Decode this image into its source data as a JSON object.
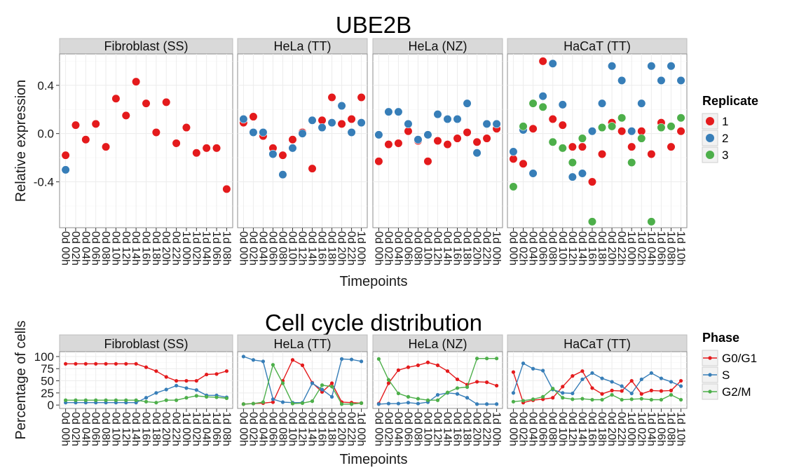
{
  "chart_data": [
    {
      "type": "scatter",
      "title": "UBE2B",
      "xlabel": "Timepoints",
      "ylabel": "Relative expression",
      "ylim": [
        -0.78,
        0.66
      ],
      "yticks": [
        -0.4,
        0.0,
        0.4
      ],
      "ytick_labels": [
        "-0.4",
        "0.0",
        "0.4"
      ],
      "legend": {
        "title": "Replicate",
        "position": "right",
        "entries": [
          "1",
          "2",
          "3"
        ]
      },
      "colors": {
        "1": "#e41a1c",
        "2": "#377eb8",
        "3": "#4daf4a"
      },
      "panels": [
        {
          "strip": "Fibroblast (SS)",
          "categories": [
            "0d 00h",
            "0d 02h",
            "0d 04h",
            "0d 06h",
            "0d 08h",
            "0d 10h",
            "0d 12h",
            "0d 14h",
            "0d 16h",
            "0d 18h",
            "0d 20h",
            "0d 22h",
            "1d 00h",
            "1d 02h",
            "1d 04h",
            "1d 06h",
            "1d 08h"
          ],
          "series": [
            {
              "name": "1",
              "values": [
                -0.18,
                0.07,
                -0.05,
                0.08,
                -0.11,
                0.29,
                0.15,
                0.43,
                0.25,
                0.01,
                0.26,
                -0.08,
                0.05,
                -0.16,
                -0.12,
                -0.12,
                -0.46
              ]
            },
            {
              "name": "2",
              "values": [
                -0.3,
                null,
                null,
                null,
                null,
                null,
                null,
                null,
                null,
                null,
                null,
                null,
                null,
                null,
                null,
                null,
                null
              ]
            }
          ]
        },
        {
          "strip": "HeLa (TT)",
          "categories": [
            "0d 00h",
            "0d 02h",
            "0d 04h",
            "0d 06h",
            "0d 08h",
            "0d 10h",
            "0d 12h",
            "0d 14h",
            "0d 16h",
            "0d 18h",
            "0d 20h",
            "0d 22h",
            "1d 00h"
          ],
          "series": [
            {
              "name": "1",
              "values": [
                0.09,
                0.14,
                -0.02,
                -0.12,
                -0.18,
                -0.05,
                0.01,
                -0.29,
                0.11,
                0.3,
                0.08,
                0.12,
                0.3
              ]
            },
            {
              "name": "2",
              "values": [
                0.12,
                0.01,
                0.01,
                -0.17,
                -0.34,
                -0.12,
                0.0,
                0.11,
                0.05,
                0.09,
                0.23,
                0.01,
                0.09
              ]
            }
          ]
        },
        {
          "strip": "HeLa (NZ)",
          "categories": [
            "0d 00h",
            "0d 02h",
            "0d 04h",
            "0d 06h",
            "0d 08h",
            "0d 10h",
            "0d 12h",
            "0d 14h",
            "0d 16h",
            "0d 18h",
            "0d 20h",
            "0d 22h",
            "1d 00h"
          ],
          "series": [
            {
              "name": "1",
              "values": [
                -0.23,
                -0.09,
                -0.08,
                0.02,
                -0.06,
                -0.23,
                -0.06,
                -0.09,
                -0.04,
                0.01,
                -0.07,
                -0.04,
                0.04
              ]
            },
            {
              "name": "2",
              "values": [
                -0.01,
                0.18,
                0.18,
                0.08,
                -0.05,
                -0.01,
                0.16,
                0.12,
                0.12,
                0.25,
                -0.16,
                0.08,
                0.08
              ]
            }
          ]
        },
        {
          "strip": "HaCaT (TT)",
          "categories": [
            "0d 00h",
            "0d 02h",
            "0d 04h",
            "0d 06h",
            "0d 08h",
            "0d 10h",
            "0d 12h",
            "0d 14h",
            "0d 16h",
            "0d 18h",
            "0d 20h",
            "0d 22h",
            "1d 00h",
            "1d 02h",
            "1d 04h",
            "1d 06h",
            "1d 08h",
            "1d 10h"
          ],
          "series": [
            {
              "name": "1",
              "values": [
                -0.21,
                -0.25,
                0.04,
                0.6,
                0.12,
                0.07,
                -0.11,
                -0.11,
                -0.4,
                -0.17,
                0.09,
                0.02,
                -0.11,
                0.02,
                -0.17,
                0.09,
                -0.11,
                0.02
              ]
            },
            {
              "name": "2",
              "values": [
                -0.15,
                0.03,
                -0.33,
                0.31,
                0.58,
                0.24,
                -0.36,
                -0.33,
                0.02,
                0.25,
                0.56,
                0.44,
                0.02,
                0.25,
                0.56,
                0.44,
                0.56,
                0.44
              ]
            },
            {
              "name": "3",
              "values": [
                -0.44,
                0.06,
                0.25,
                0.22,
                -0.07,
                -0.12,
                -0.24,
                -0.04,
                -0.73,
                0.05,
                0.06,
                0.13,
                -0.24,
                -0.04,
                -0.73,
                0.05,
                0.06,
                0.13
              ]
            }
          ]
        }
      ]
    },
    {
      "type": "line",
      "title": "Cell cycle distribution",
      "xlabel": "Timepoints",
      "ylabel": "Percentage of cells",
      "ylim": [
        -7,
        110
      ],
      "yticks": [
        0,
        25,
        50,
        75,
        100
      ],
      "ytick_labels": [
        "0",
        "25",
        "50",
        "75",
        "100"
      ],
      "legend": {
        "title": "Phase",
        "position": "right",
        "entries": [
          "G0/G1",
          "S",
          "G2/M"
        ]
      },
      "colors": {
        "G0/G1": "#e41a1c",
        "S": "#377eb8",
        "G2/M": "#4daf4a"
      },
      "panels": [
        {
          "strip": "Fibroblast (SS)",
          "categories": [
            "0d 00h",
            "0d 02h",
            "0d 04h",
            "0d 06h",
            "0d 08h",
            "0d 10h",
            "0d 12h",
            "0d 14h",
            "0d 16h",
            "0d 18h",
            "0d 20h",
            "0d 22h",
            "1d 00h",
            "1d 02h",
            "1d 04h",
            "1d 06h",
            "1d 08h"
          ],
          "series": [
            {
              "name": "G0/G1",
              "values": [
                85,
                85,
                85,
                85,
                85,
                85,
                85,
                85,
                78,
                70,
                58,
                50,
                50,
                50,
                63,
                64,
                70
              ]
            },
            {
              "name": "S",
              "values": [
                5,
                5,
                5,
                5,
                5,
                5,
                5,
                5,
                15,
                25,
                32,
                40,
                35,
                31,
                20,
                20,
                16
              ]
            },
            {
              "name": "G2/M",
              "values": [
                10,
                10,
                10,
                10,
                10,
                10,
                10,
                10,
                7,
                5,
                10,
                10,
                15,
                19,
                17,
                16,
                14
              ]
            }
          ]
        },
        {
          "strip": "HeLa (TT)",
          "categories": [
            "0d 00h",
            "0d 02h",
            "0d 04h",
            "0d 06h",
            "0d 08h",
            "0d 10h",
            "0d 12h",
            "0d 14h",
            "0d 16h",
            "0d 18h",
            "0d 20h",
            "0d 22h",
            "1d 00h"
          ],
          "series": [
            {
              "name": "G0/G1",
              "values": [
                2,
                3,
                4,
                6,
                50,
                93,
                82,
                46,
                27,
                45,
                6,
                5,
                4
              ]
            },
            {
              "name": "S",
              "values": [
                100,
                93,
                90,
                12,
                6,
                5,
                5,
                45,
                32,
                17,
                95,
                94,
                90
              ]
            },
            {
              "name": "G2/M",
              "values": [
                2,
                3,
                6,
                83,
                45,
                3,
                4,
                8,
                41,
                38,
                2,
                2,
                4
              ]
            }
          ]
        },
        {
          "strip": "HeLa (NZ)",
          "categories": [
            "0d 00h",
            "0d 02h",
            "0d 04h",
            "0d 06h",
            "0d 08h",
            "0d 10h",
            "0d 12h",
            "0d 14h",
            "0d 16h",
            "0d 18h",
            "0d 20h",
            "0d 22h",
            "1d 00h"
          ],
          "series": [
            {
              "name": "G0/G1",
              "values": [
                3,
                45,
                72,
                78,
                82,
                88,
                82,
                70,
                53,
                42,
                48,
                47,
                40
              ]
            },
            {
              "name": "S",
              "values": [
                2,
                3,
                3,
                5,
                3,
                6,
                21,
                25,
                23,
                15,
                2,
                2,
                2
              ]
            },
            {
              "name": "G2/M",
              "values": [
                95,
                52,
                24,
                17,
                13,
                10,
                10,
                26,
                35,
                37,
                96,
                96,
                96
              ]
            }
          ]
        },
        {
          "strip": "HaCaT (TT)",
          "categories": [
            "0d 00h",
            "0d 02h",
            "0d 04h",
            "0d 06h",
            "0d 08h",
            "0d 10h",
            "0d 12h",
            "0d 14h",
            "0d 16h",
            "0d 18h",
            "0d 20h",
            "0d 22h",
            "1d 00h",
            "1d 02h",
            "1d 04h",
            "1d 06h",
            "1d 08h",
            "1d 10h"
          ],
          "series": [
            {
              "name": "G0/G1",
              "values": [
                68,
                5,
                10,
                12,
                15,
                38,
                60,
                70,
                35,
                23,
                30,
                29,
                50,
                23,
                30,
                29,
                30,
                50
              ]
            },
            {
              "name": "S",
              "values": [
                25,
                86,
                75,
                71,
                32,
                25,
                24,
                53,
                66,
                55,
                48,
                39,
                24,
                53,
                66,
                55,
                48,
                39
              ]
            },
            {
              "name": "G2/M",
              "values": [
                7,
                9,
                12,
                17,
                34,
                15,
                12,
                13,
                11,
                11,
                21,
                11,
                12,
                13,
                11,
                11,
                21,
                11
              ]
            }
          ]
        }
      ]
    }
  ]
}
